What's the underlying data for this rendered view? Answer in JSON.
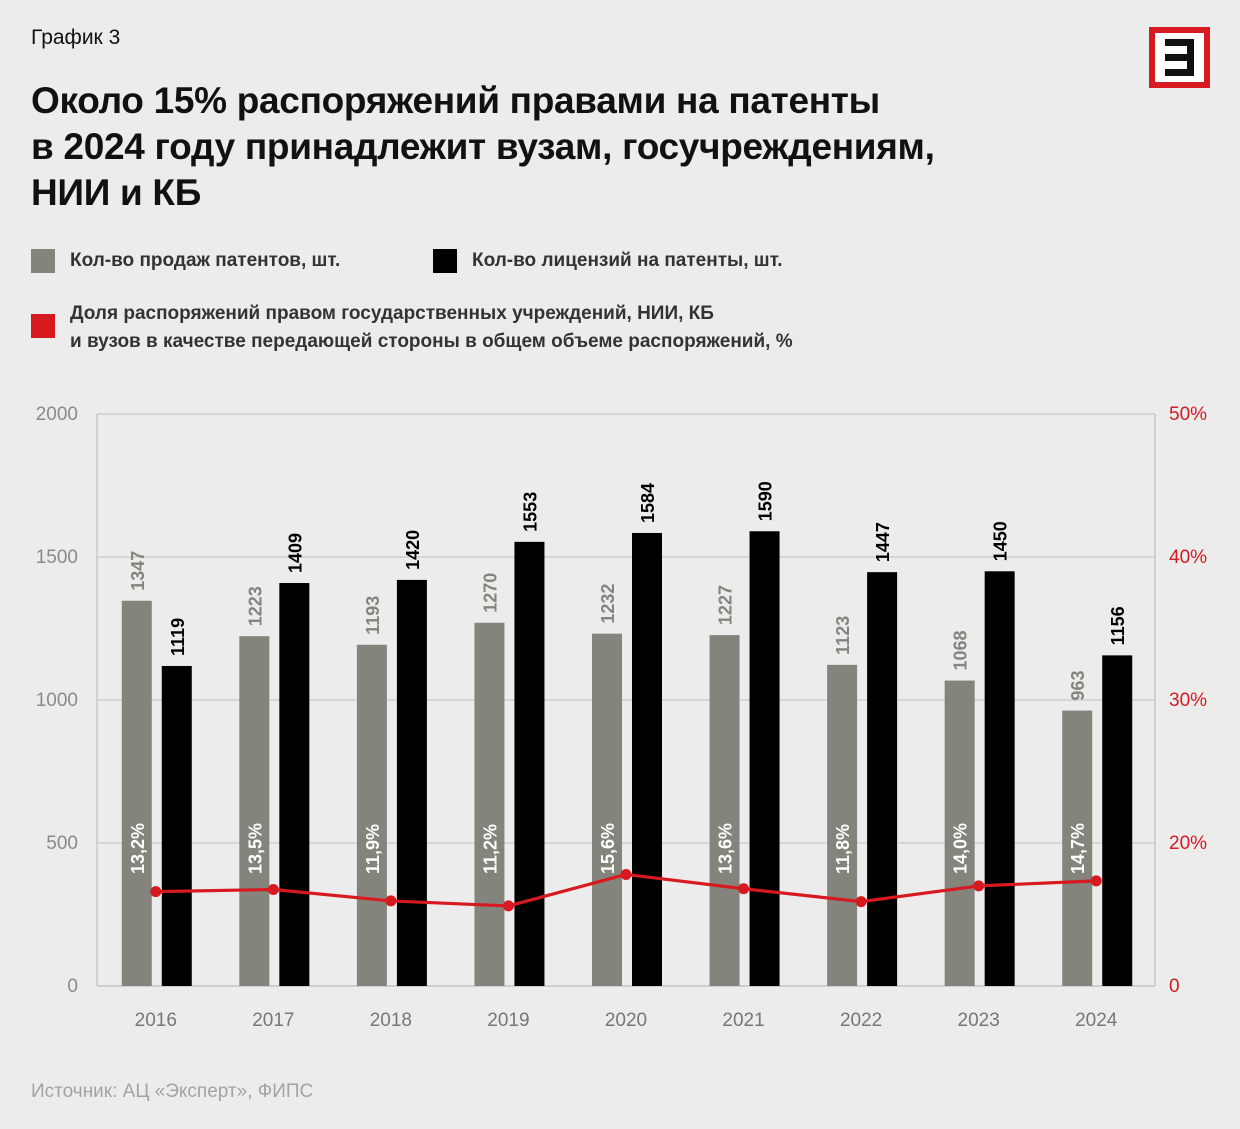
{
  "header": {
    "kicker": "График 3",
    "title_lines": [
      "Около 15% распоряжений правами на патенты",
      "в 2024 году принадлежит вузам,  госучреждениям,",
      "НИИ и КБ"
    ],
    "logo_icon": "expert-logo-icon",
    "logo_color": "#d71920"
  },
  "legend": {
    "sales": "Кол-во продаж патентов, шт.",
    "licenses": "Кол-во лицензий на патенты, шт.",
    "share_lines": [
      "Доля распоряжений правом государственных учреждений, НИИ, КБ",
      "и вузов в качестве передающей стороны в общем объеме распоряжений, %"
    ]
  },
  "source": "Источник: АЦ «Эксперт», ФИПС",
  "chart_data": {
    "type": "bar",
    "categories": [
      "2016",
      "2017",
      "2018",
      "2019",
      "2020",
      "2021",
      "2022",
      "2023",
      "2024"
    ],
    "series": [
      {
        "name": "Кол-во продаж патентов, шт.",
        "type": "bar",
        "axis": "left",
        "color": "#85847c",
        "values": [
          1347,
          1223,
          1193,
          1270,
          1232,
          1227,
          1123,
          1068,
          963
        ],
        "labels": [
          "1347",
          "1223",
          "1193",
          "1270",
          "1232",
          "1227",
          "1123",
          "1068",
          "963"
        ]
      },
      {
        "name": "Кол-во лицензий на патенты, шт.",
        "type": "bar",
        "axis": "left",
        "color": "#000000",
        "values": [
          1119,
          1409,
          1420,
          1553,
          1584,
          1590,
          1447,
          1450,
          1156
        ],
        "labels": [
          "1119",
          "1409",
          "1420",
          "1553",
          "1584",
          "1590",
          "1447",
          "1450",
          "1156"
        ]
      },
      {
        "name": "Доля распоряжений правом государственных учреждений, НИИ, КБ и вузов в качестве передающей стороны в общем объеме распоряжений, %",
        "type": "line",
        "axis": "right",
        "color": "#d71920",
        "values": [
          13.2,
          13.5,
          11.9,
          11.2,
          15.6,
          13.6,
          11.8,
          14.0,
          14.7
        ],
        "labels": [
          "13,2%",
          "13,5%",
          "11,9%",
          "11,2%",
          "15,6%",
          "13,6%",
          "11,8%",
          "14,0%",
          "14,7%"
        ]
      }
    ],
    "ylim": [
      0,
      2000
    ],
    "y_ticks": [
      "0",
      "500",
      "1000",
      "1500",
      "2000"
    ],
    "y2_ticks": [
      "0",
      "20%",
      "30%",
      "40%",
      "50%"
    ],
    "grid": true,
    "legend": "top-left"
  }
}
